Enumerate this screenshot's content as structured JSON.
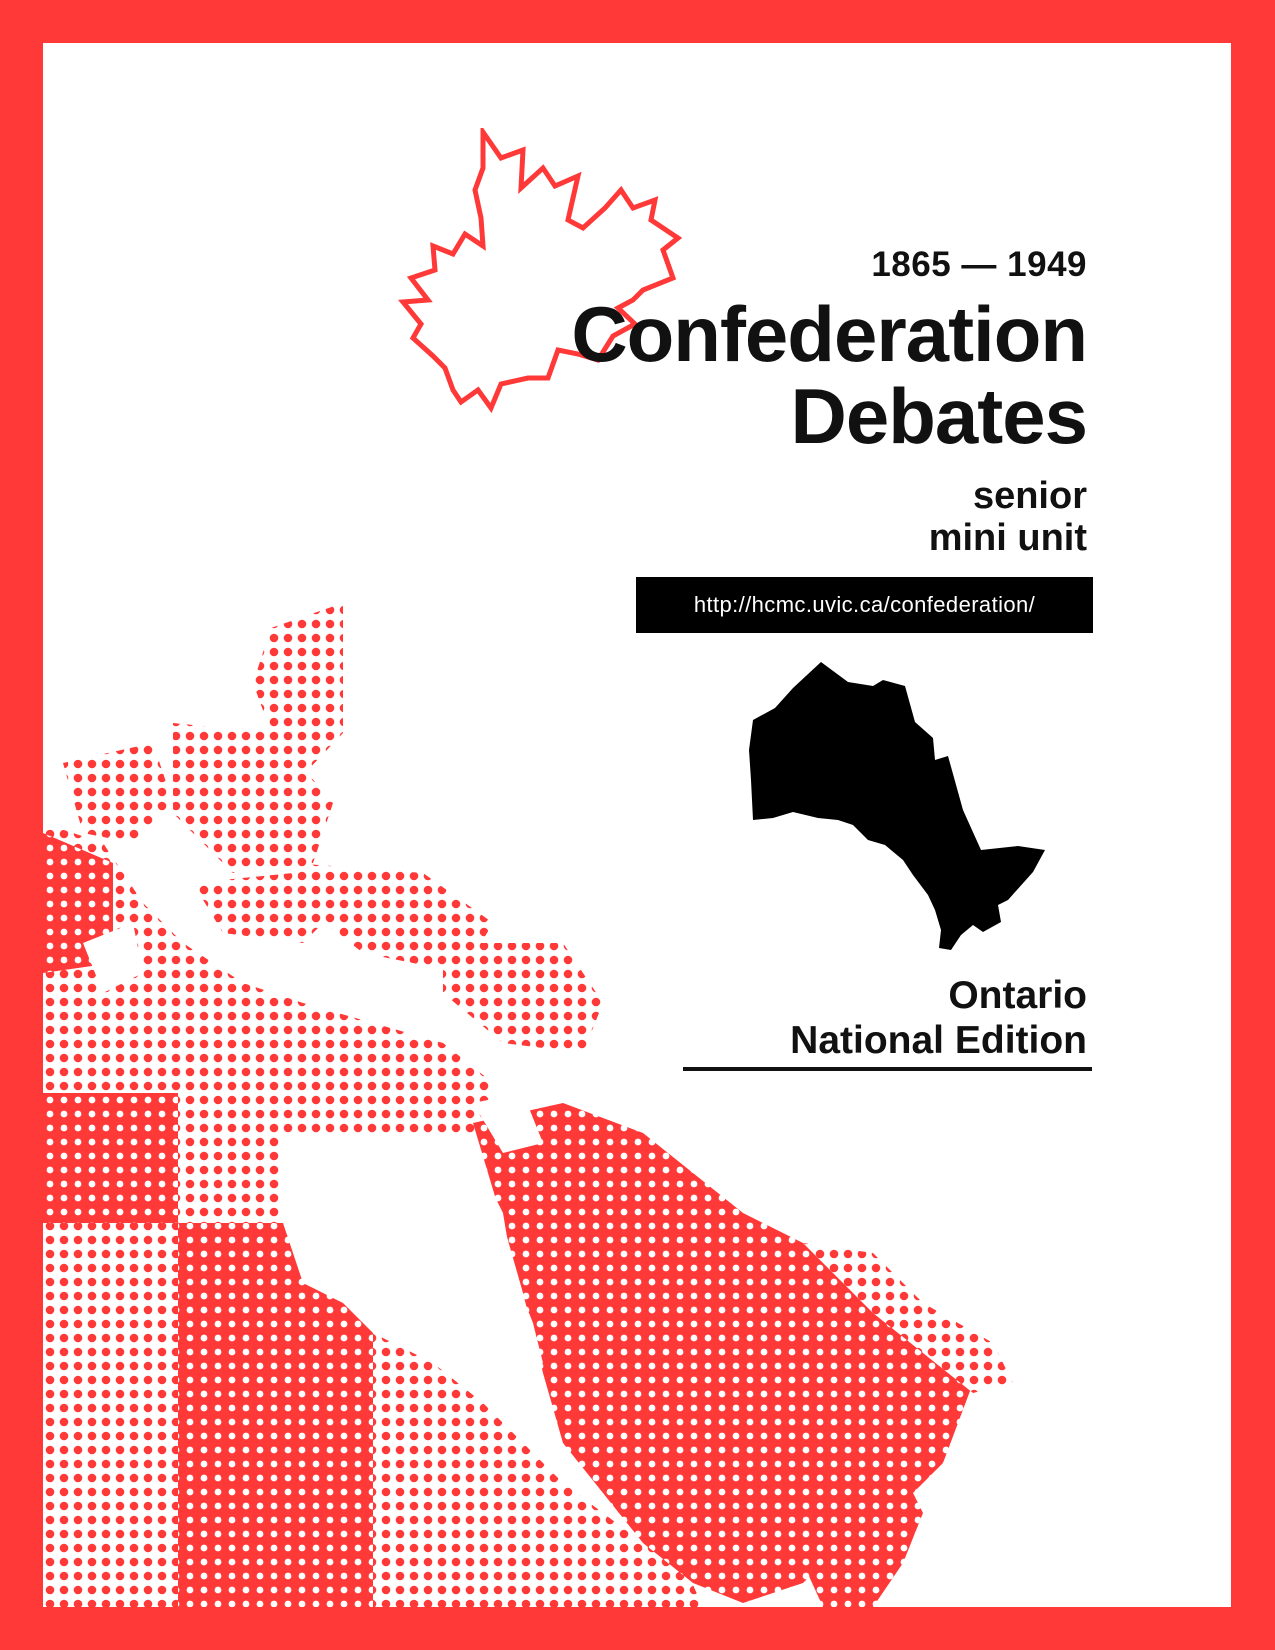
{
  "cover": {
    "years": "1865 — 1949",
    "title_line1": "Confederation",
    "title_line2": "Debates",
    "subtitle_line1": "senior",
    "subtitle_line2": "mini unit",
    "url": "http://hcmc.uvic.ca/confederation/",
    "province": "Ontario",
    "edition": "National Edition"
  },
  "colors": {
    "frame": "#ff3838",
    "accent": "#ff3838",
    "text": "#111111",
    "background": "#ffffff"
  },
  "graphics": {
    "logo": "maple-leaf-outline-icon",
    "province_silhouette": "ontario-map-icon",
    "background_map": "canada-halftone-map"
  }
}
